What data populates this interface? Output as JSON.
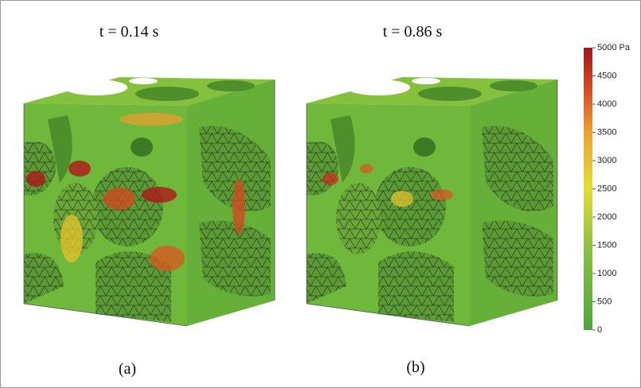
{
  "panels": [
    {
      "time_label": "t = 0.14 s",
      "caption": "(a)"
    },
    {
      "time_label": "t = 0.86 s",
      "caption": "(b)"
    }
  ],
  "colorbar": {
    "min": 0,
    "max": 5000,
    "unit": "Pa",
    "ticks": [
      0,
      500,
      1000,
      1500,
      2000,
      2500,
      3000,
      3500,
      4000,
      4500,
      5000
    ]
  }
}
